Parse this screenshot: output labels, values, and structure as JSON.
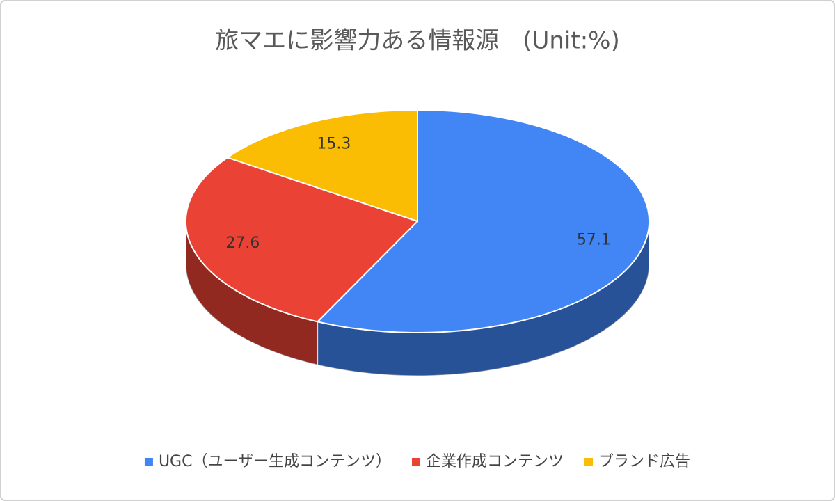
{
  "chart_data": {
    "type": "pie",
    "title": "旅マエに影響力ある情報源　(Unit:%)",
    "categories": [
      "UGC（ユーザー生成コンテンツ）",
      "企業作成コンテンツ",
      "ブランド広告"
    ],
    "values": [
      57.1,
      27.6,
      15.3
    ],
    "colors": [
      "#4285f4",
      "#ea4335",
      "#fbbc04"
    ],
    "legend": "bottom"
  }
}
